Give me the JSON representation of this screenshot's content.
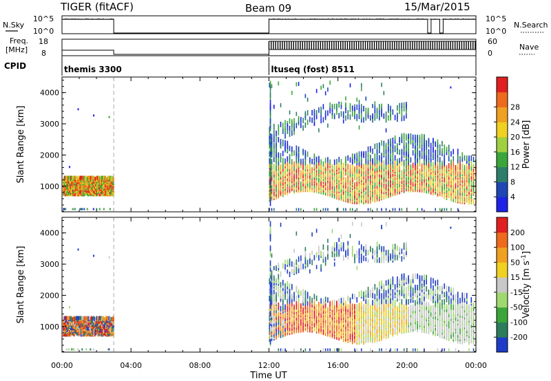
{
  "header": {
    "radar": "TIGER (fitACF)",
    "beam": "Beam 09",
    "date": "15/Mar/2015"
  },
  "strip_labels": {
    "nsky": "N.Sky",
    "nsearch": "N.Search",
    "freq": "Freq.",
    "freq_unit": "[MHz]",
    "nave": "Nave",
    "cpid": "CPID",
    "nsky_ticks": [
      "10^5",
      "10^0"
    ],
    "nsearch_ticks": [
      "10^5",
      "10^0"
    ],
    "freq_ticks": [
      "18",
      "8"
    ],
    "nave_ticks": [
      "60",
      "0"
    ]
  },
  "cpid_entries": [
    {
      "start": 0.0,
      "label": "themis 3300"
    },
    {
      "start": 12.0,
      "label": "ltuseq (fost) 8511"
    }
  ],
  "chart_data": [
    {
      "type": "heatmap",
      "panel": "power",
      "ylabel": "Slant Range [km]",
      "xlabel": "Time UT",
      "xlim": [
        0,
        24
      ],
      "ylim": [
        180,
        4500
      ],
      "yticks": [
        "1000",
        "2000",
        "3000",
        "4000"
      ],
      "xticks": [
        "00:00",
        "04:00",
        "08:00",
        "12:00",
        "16:00",
        "20:00",
        "00:00"
      ],
      "colorbar": {
        "label": "Power [dB]",
        "ticks": [
          "4",
          "8",
          "12",
          "16",
          "20",
          "24",
          "28"
        ],
        "colors": [
          "#1e22e6",
          "#1e46b4",
          "#2d7d6b",
          "#3aa63a",
          "#a0d040",
          "#f0d020",
          "#f0a020",
          "#ee6a1c",
          "#e02020"
        ]
      },
      "data_time_ranges": [
        [
          0.0,
          3.0
        ],
        [
          12.0,
          24.0
        ]
      ]
    },
    {
      "type": "heatmap",
      "panel": "velocity",
      "ylabel": "Slant Range [km]",
      "xlabel": "Time UT",
      "xlim": [
        0,
        24
      ],
      "ylim": [
        180,
        4500
      ],
      "yticks": [
        "1000",
        "2000",
        "3000",
        "4000"
      ],
      "xticks": [
        "00:00",
        "04:00",
        "08:00",
        "12:00",
        "16:00",
        "20:00",
        "00:00"
      ],
      "colorbar": {
        "label": "Velocity [m s",
        "label_sup": "-1",
        "label_end": "]",
        "ticks": [
          "200",
          "100",
          "50",
          "15",
          "-15",
          "-50",
          "-100",
          "-200"
        ],
        "colors": [
          "#1e3cc8",
          "#2b7d5c",
          "#3aa63a",
          "#a0d870",
          "#c8c8c8",
          "#f0d020",
          "#f0a020",
          "#ee6a1c",
          "#e02020"
        ]
      },
      "data_time_ranges": [
        [
          0.0,
          3.0
        ],
        [
          12.0,
          24.0
        ]
      ]
    }
  ],
  "xaxis_label": "Time UT"
}
